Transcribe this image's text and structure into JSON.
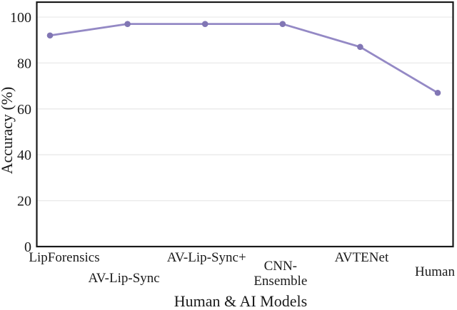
{
  "chart_data": {
    "type": "line",
    "title": "",
    "xlabel": "Human & AI Models",
    "ylabel": "Accuracy (%)",
    "categories": [
      "LipForensics",
      "AV-Lip-Sync",
      "AV-Lip-Sync+",
      "CNN-Ensemble",
      "AVTENet",
      "Human"
    ],
    "category_label_lines": [
      [
        "LipForensics"
      ],
      [
        "AV-Lip-Sync"
      ],
      [
        "AV-Lip-Sync+"
      ],
      [
        "CNN-",
        "Ensemble"
      ],
      [
        "AVTENet"
      ],
      [
        "Human"
      ]
    ],
    "series": [
      {
        "name": "Accuracy (%)",
        "values": [
          92,
          97,
          97,
          97,
          87,
          67
        ]
      }
    ],
    "ylim": [
      0,
      100
    ],
    "yticks": [
      0,
      20,
      40,
      60,
      80,
      100
    ],
    "grid": true,
    "legend": false,
    "colors": {
      "line": "#9489c5",
      "marker": "#8176b4",
      "axis": "#1a1a1a",
      "gridline": "#e9e9e9",
      "text": "#1a1a1a",
      "background": "#ffffff"
    }
  }
}
